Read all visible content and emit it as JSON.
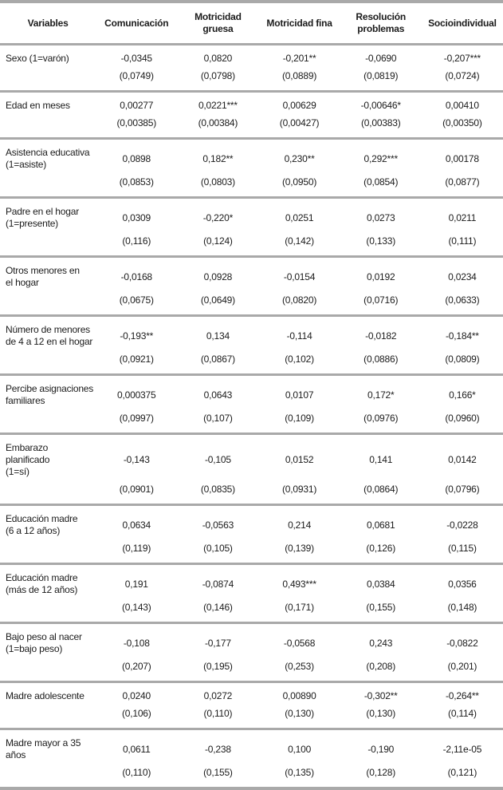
{
  "table": {
    "columns": [
      "Variables",
      "Comunicación",
      "Motricidad gruesa",
      "Motricidad fina",
      "Resolución problemas",
      "Socioindividual"
    ],
    "rows": [
      {
        "label": "Sexo (1=varón)",
        "coefs": [
          "-0,0345",
          "0,0820",
          "-0,201**",
          "-0,0690",
          "-0,207***"
        ],
        "ses": [
          "(0,0749)",
          "(0,0798)",
          "(0,0889)",
          "(0,0819)",
          "(0,0724)"
        ]
      },
      {
        "label": "Edad en meses",
        "coefs": [
          "0,00277",
          "0,0221***",
          "0,00629",
          "-0,00646*",
          "0,00410"
        ],
        "ses": [
          "(0,00385)",
          "(0,00384)",
          "(0,00427)",
          "(0,00383)",
          "(0,00350)"
        ]
      },
      {
        "label": "Asistencia educativa\n(1=asiste)",
        "coefs": [
          "0,0898",
          "0,182**",
          "0,230**",
          "0,292***",
          "0,00178"
        ],
        "ses": [
          "(0,0853)",
          "(0,0803)",
          "(0,0950)",
          "(0,0854)",
          "(0,0877)"
        ]
      },
      {
        "label": "Padre en el hogar\n(1=presente)",
        "coefs": [
          "0,0309",
          "-0,220*",
          "0,0251",
          "0,0273",
          "0,0211"
        ],
        "ses": [
          "(0,116)",
          "(0,124)",
          "(0,142)",
          "(0,133)",
          "(0,111)"
        ]
      },
      {
        "label": "Otros menores en\nel hogar",
        "coefs": [
          "-0,0168",
          "0,0928",
          "-0,0154",
          "0,0192",
          "0,0234"
        ],
        "ses": [
          "(0,0675)",
          "(0,0649)",
          "(0,0820)",
          "(0,0716)",
          "(0,0633)"
        ]
      },
      {
        "label": "Número de menores\nde 4 a 12 en el hogar",
        "coefs": [
          "-0,193**",
          "0,134",
          "-0,114",
          "-0,0182",
          "-0,184**"
        ],
        "ses": [
          "(0,0921)",
          "(0,0867)",
          "(0,102)",
          "(0,0886)",
          "(0,0809)"
        ]
      },
      {
        "label": "Percibe asignaciones\nfamiliares",
        "coefs": [
          "0,000375",
          "0,0643",
          "0,0107",
          "0,172*",
          "0,166*"
        ],
        "ses": [
          "(0,0997)",
          "(0,107)",
          "(0,109)",
          "(0,0976)",
          "(0,0960)"
        ]
      },
      {
        "label": "Embarazo planificado\n(1=sí)",
        "coefs": [
          "-0,143",
          "-0,105",
          "0,0152",
          "0,141",
          "0,0142"
        ],
        "ses": [
          "(0,0901)",
          "(0,0835)",
          "(0,0931)",
          "(0,0864)",
          "(0,0796)"
        ]
      },
      {
        "label": "Educación madre\n(6 a 12 años)",
        "coefs": [
          "0,0634",
          "-0,0563",
          "0,214",
          "0,0681",
          "-0,0228"
        ],
        "ses": [
          "(0,119)",
          "(0,105)",
          "(0,139)",
          "(0,126)",
          "(0,115)"
        ]
      },
      {
        "label": "Educación madre\n(más de 12 años)",
        "coefs": [
          "0,191",
          "-0,0874",
          "0,493***",
          "0,0384",
          "0,0356"
        ],
        "ses": [
          "(0,143)",
          "(0,146)",
          "(0,171)",
          "(0,155)",
          "(0,148)"
        ]
      },
      {
        "label": "Bajo peso al nacer\n(1=bajo peso)",
        "coefs": [
          "-0,108",
          "-0,177",
          "-0,0568",
          "0,243",
          "-0,0822"
        ],
        "ses": [
          "(0,207)",
          "(0,195)",
          "(0,253)",
          "(0,208)",
          "(0,201)"
        ]
      },
      {
        "label": "Madre adolescente",
        "coefs": [
          "0,0240",
          "0,0272",
          "0,00890",
          "-0,302**",
          "-0,264**"
        ],
        "ses": [
          "(0,106)",
          "(0,110)",
          "(0,130)",
          "(0,130)",
          "(0,114)"
        ]
      },
      {
        "label": "Madre mayor a 35\naños",
        "coefs": [
          "0,0611",
          "-0,238",
          "0,100",
          "-0,190",
          "-2,11e-05"
        ],
        "ses": [
          "(0,110)",
          "(0,155)",
          "(0,135)",
          "(0,128)",
          "(0,121)"
        ]
      }
    ]
  },
  "colors": {
    "rule_gray": "#a9a9a9",
    "text": "#1b1b1b"
  }
}
